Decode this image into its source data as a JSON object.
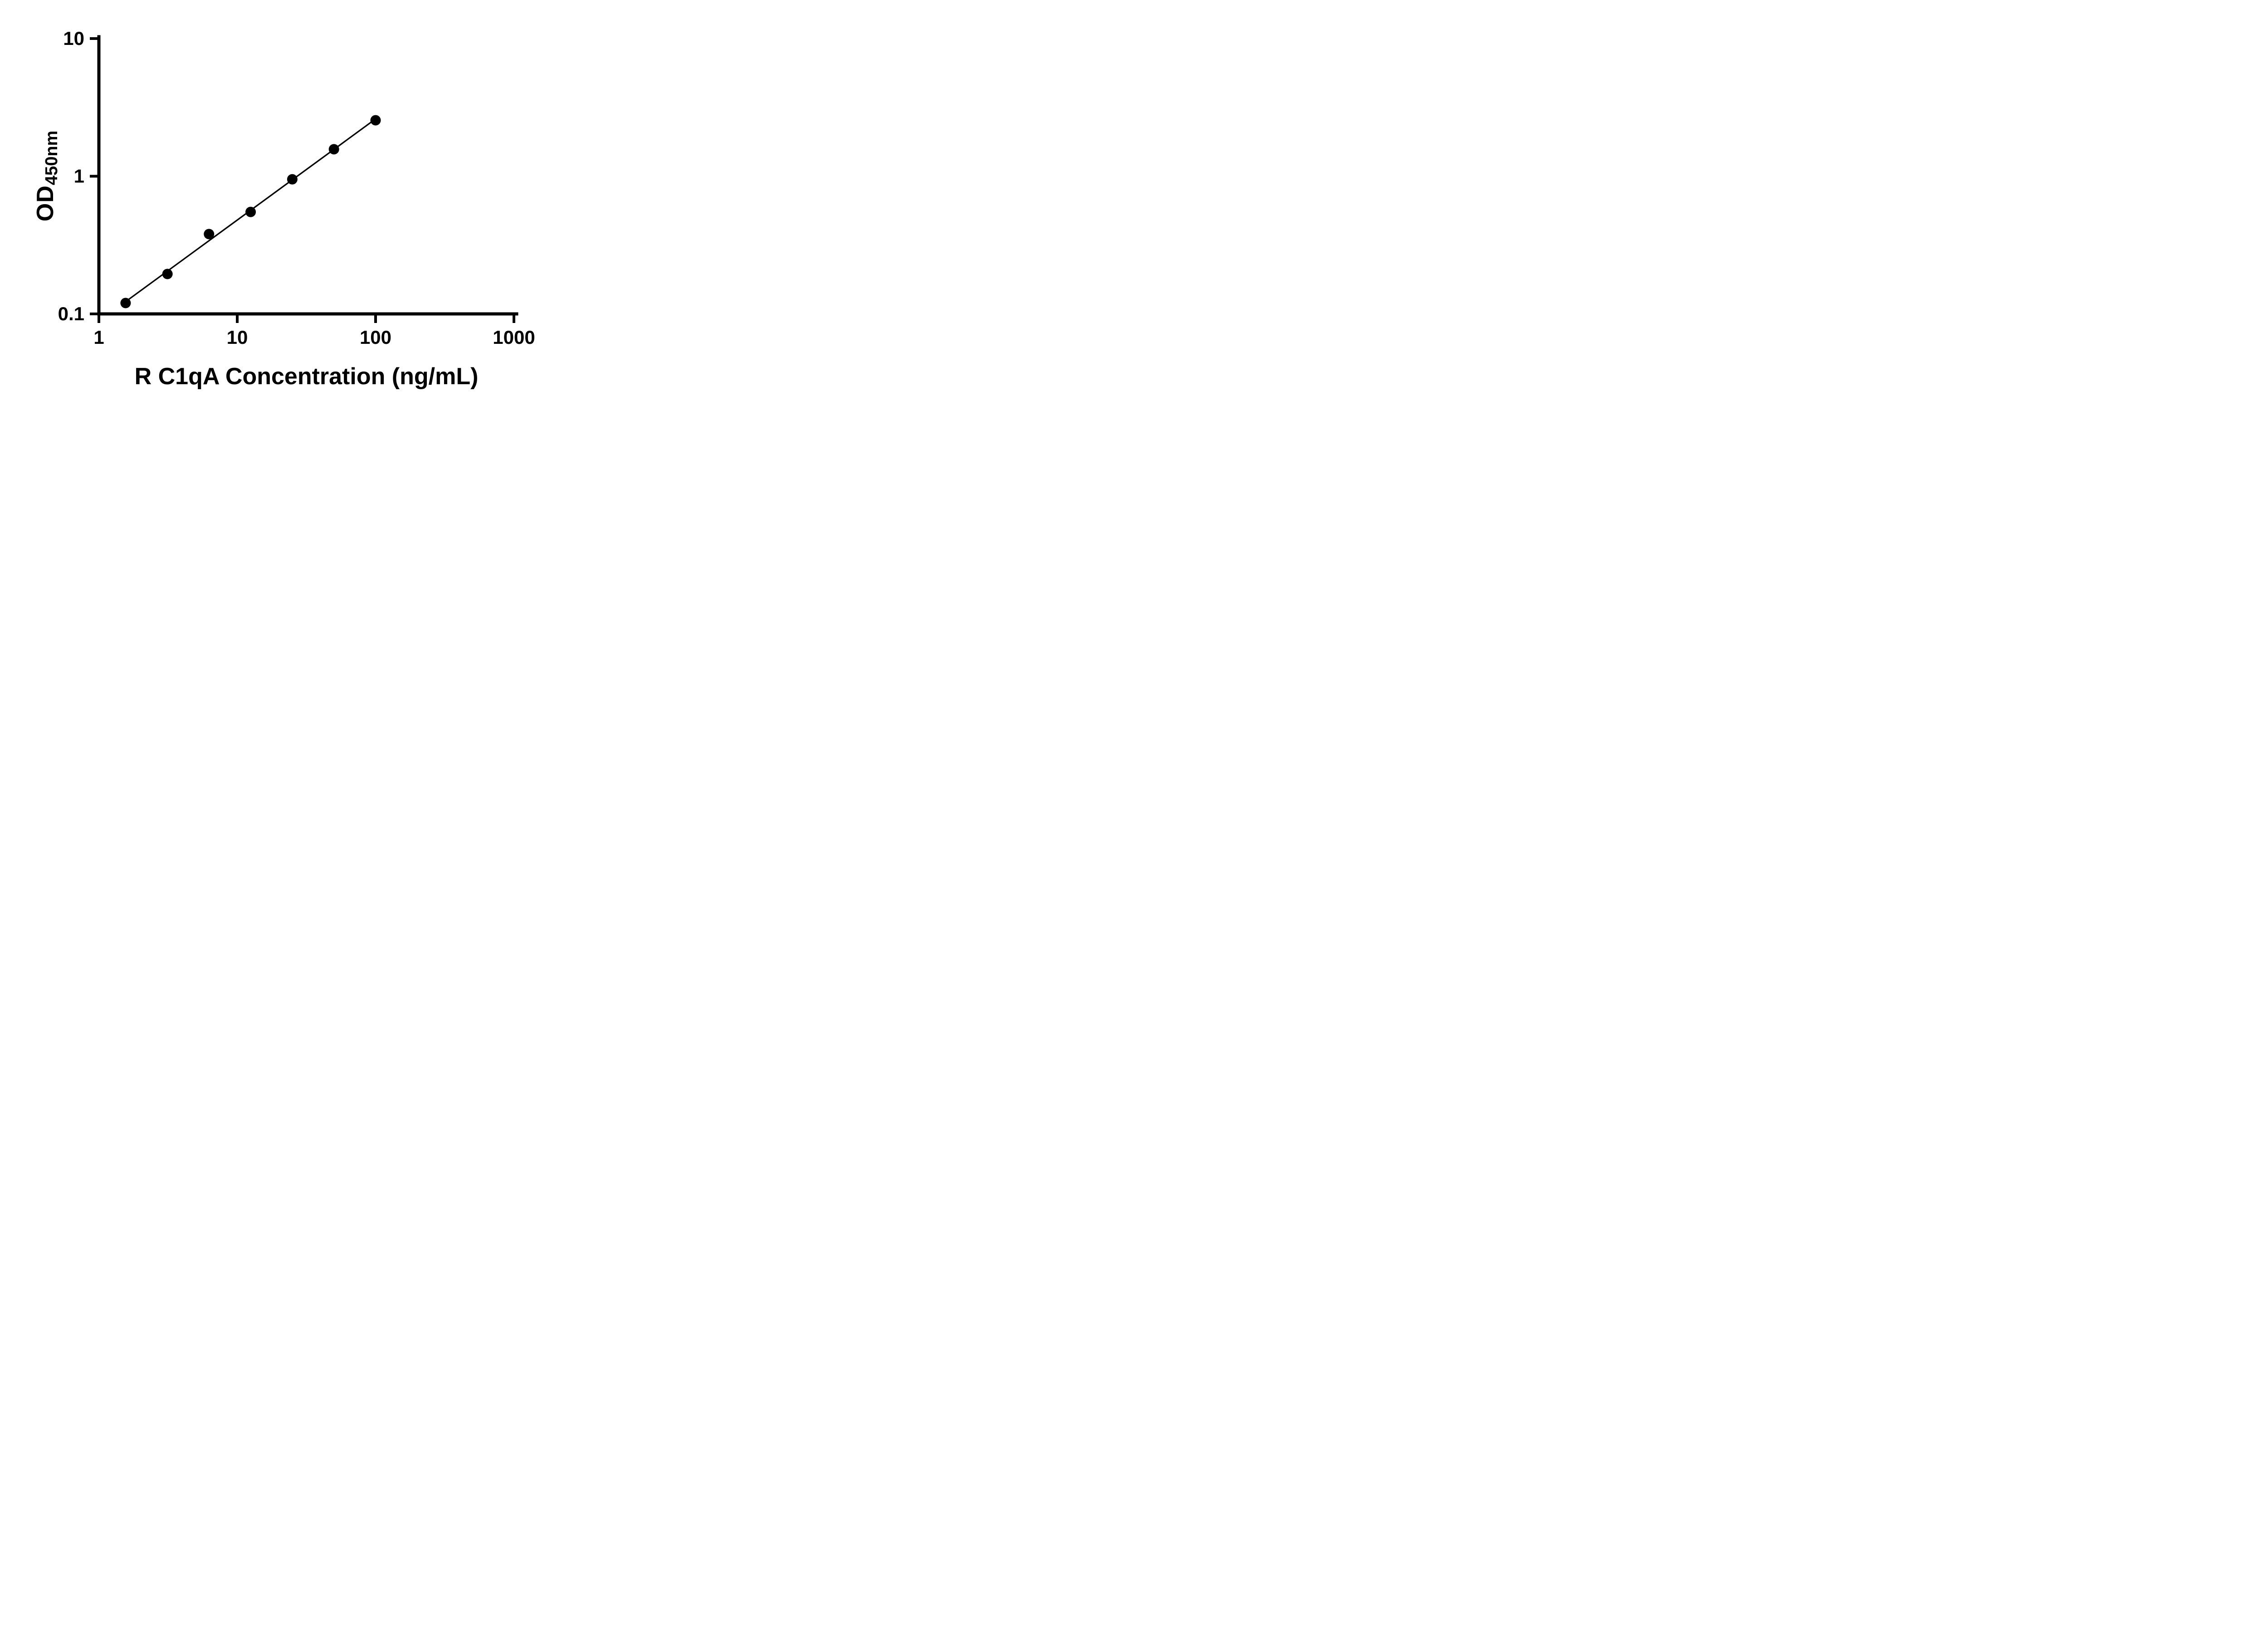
{
  "figure": {
    "background": "#ffffff"
  },
  "chart_data": {
    "type": "scatter",
    "title": "",
    "xlabel": "R C1qA Concentration (ng/mL)",
    "ylabel": "OD450nm",
    "ylabel_main": "OD",
    "ylabel_sub": "450nm",
    "x_scale": "log",
    "y_scale": "log",
    "xlim": [
      1,
      1000
    ],
    "ylim": [
      0.1,
      10
    ],
    "x_ticks": [
      1,
      10,
      100,
      1000
    ],
    "y_ticks": [
      0.1,
      1,
      10
    ],
    "grid": false,
    "legend": false,
    "trendline": true,
    "axis_color": "#000000",
    "marker_color": "#000000",
    "line_color": "#000000",
    "x": [
      1.56,
      3.13,
      6.25,
      12.5,
      25,
      50,
      100
    ],
    "y": [
      0.12,
      0.195,
      0.38,
      0.55,
      0.95,
      1.57,
      2.55
    ]
  }
}
